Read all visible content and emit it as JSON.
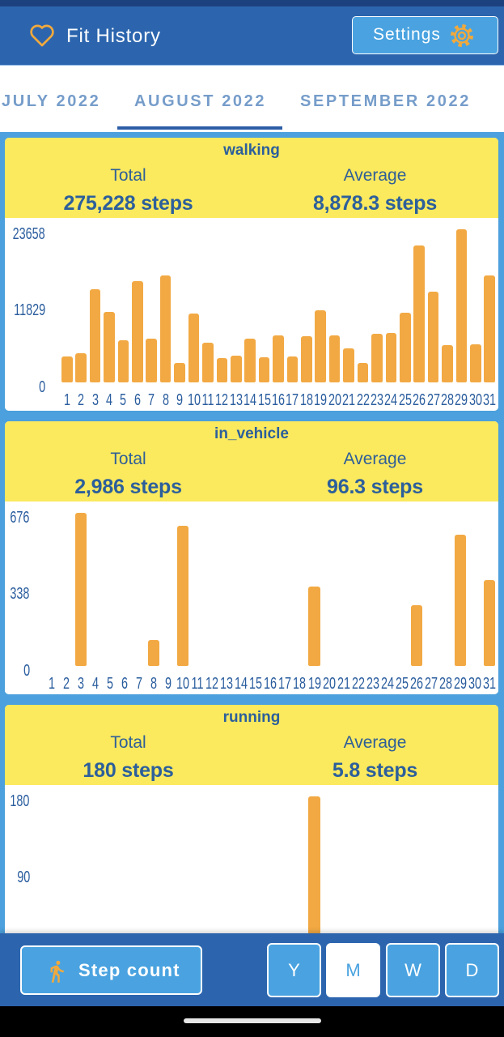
{
  "app": {
    "title": "Fit History",
    "icon": "heart-icon"
  },
  "settings": {
    "label": "Settings",
    "icon": "gear-icon"
  },
  "tabs": [
    {
      "label": "JULY 2022",
      "active": false
    },
    {
      "label": "AUGUST 2022",
      "active": true
    },
    {
      "label": "SEPTEMBER 2022",
      "active": false
    }
  ],
  "bottom": {
    "metric_button": {
      "label": "Step count",
      "icon": "walking-person-icon"
    },
    "periods": [
      {
        "label": "Y",
        "active": false
      },
      {
        "label": "M",
        "active": true
      },
      {
        "label": "W",
        "active": false
      },
      {
        "label": "D",
        "active": false
      }
    ]
  },
  "colors": {
    "header": "#2c65ae",
    "accent": "#4aa3e0",
    "card_header": "#fbe95e",
    "bar": "#f2a943",
    "text": "#2c5f9b",
    "icon": "#f0a93d"
  },
  "chart_data": [
    {
      "type": "bar",
      "title": "walking",
      "summary": {
        "total_label": "Total",
        "total": "275,228 steps",
        "average_label": "Average",
        "average": "8,878.3 steps"
      },
      "categories": [
        "1",
        "2",
        "3",
        "4",
        "5",
        "6",
        "7",
        "8",
        "9",
        "10",
        "11",
        "12",
        "13",
        "14",
        "15",
        "16",
        "17",
        "18",
        "19",
        "20",
        "21",
        "22",
        "23",
        "24",
        "25",
        "26",
        "27",
        "28",
        "29",
        "30",
        "31"
      ],
      "values": [
        4000,
        4500,
        14400,
        10900,
        6500,
        15600,
        6700,
        16500,
        3000,
        10600,
        6100,
        3800,
        4100,
        6700,
        3900,
        7300,
        4000,
        7100,
        11100,
        7300,
        5300,
        3000,
        7500,
        7600,
        10800,
        21100,
        14070,
        5700,
        23658,
        5900,
        16500
      ],
      "yticks": [
        {
          "value": 23658,
          "label": "23658"
        },
        {
          "value": 11829,
          "label": "11829"
        },
        {
          "value": 0,
          "label": "0"
        }
      ],
      "ylim": [
        0,
        23658
      ],
      "xlabel": "",
      "ylabel": ""
    },
    {
      "type": "bar",
      "title": "in_vehicle",
      "summary": {
        "total_label": "Total",
        "total": "2,986 steps",
        "average_label": "Average",
        "average": "96.3 steps"
      },
      "categories": [
        "1",
        "2",
        "3",
        "4",
        "5",
        "6",
        "7",
        "8",
        "9",
        "10",
        "11",
        "12",
        "13",
        "14",
        "15",
        "16",
        "17",
        "18",
        "19",
        "20",
        "21",
        "22",
        "23",
        "24",
        "25",
        "26",
        "27",
        "28",
        "29",
        "30",
        "31"
      ],
      "values": [
        0,
        0,
        676,
        0,
        0,
        0,
        0,
        116,
        0,
        619,
        0,
        0,
        0,
        0,
        0,
        0,
        0,
        0,
        350,
        0,
        0,
        0,
        0,
        0,
        0,
        268,
        0,
        0,
        578,
        0,
        379
      ],
      "yticks": [
        {
          "value": 676,
          "label": "676"
        },
        {
          "value": 338,
          "label": "338"
        },
        {
          "value": 0,
          "label": "0"
        }
      ],
      "ylim": [
        0,
        676
      ],
      "xlabel": "",
      "ylabel": ""
    },
    {
      "type": "bar",
      "title": "running",
      "summary": {
        "total_label": "Total",
        "total": "180 steps",
        "average_label": "Average",
        "average": "5.8 steps"
      },
      "values": [
        0,
        0,
        0,
        0,
        0,
        0,
        0,
        0,
        0,
        0,
        0,
        0,
        0,
        0,
        0,
        0,
        0,
        0,
        180,
        0,
        0,
        0,
        0,
        0,
        0,
        0,
        0,
        0,
        0,
        0,
        0
      ],
      "yticks": [
        {
          "value": 180,
          "label": "180"
        },
        {
          "value": 90,
          "label": "90"
        }
      ],
      "ylim": [
        0,
        180
      ],
      "xlabel": "",
      "ylabel": ""
    }
  ]
}
